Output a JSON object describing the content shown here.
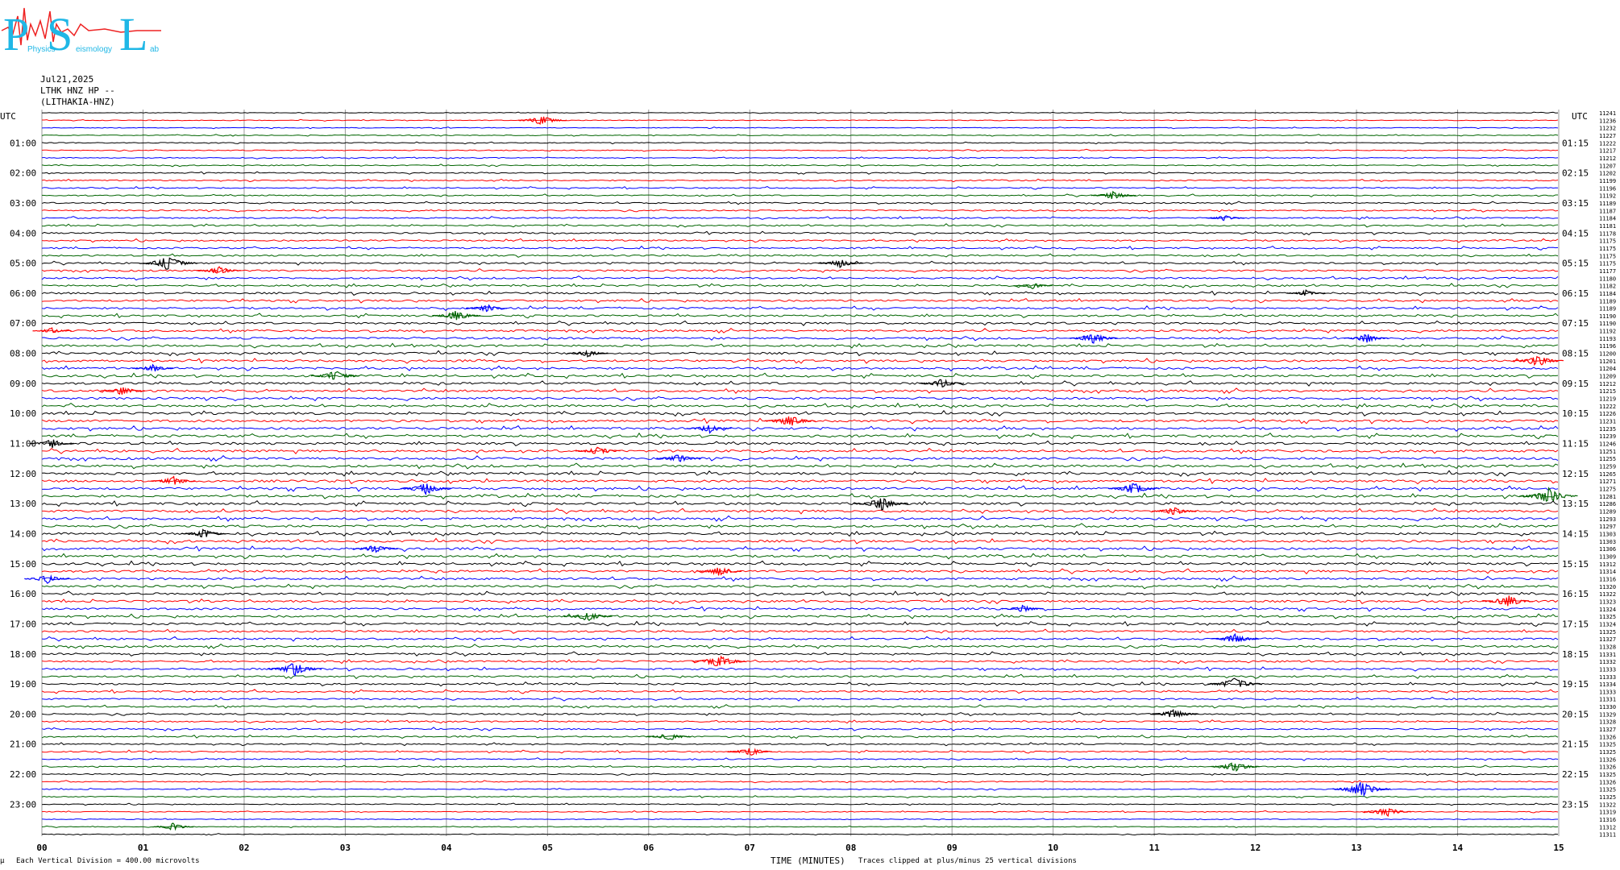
{
  "logo": {
    "letters": [
      "P",
      "S",
      "L"
    ],
    "words": [
      "Physics",
      "eismology",
      "ab"
    ],
    "colors": {
      "letters": "#1fb7e6",
      "wave": "#ee2222"
    }
  },
  "header": {
    "date": "Jul21,2025",
    "station": "LTHK HNZ HP --",
    "channel": "(LITHAKIA-HNZ)"
  },
  "chart_data": {
    "type": "line",
    "axes": {
      "left_title": "UTC",
      "right_title": "UTC",
      "x_label": "TIME (MINUTES)"
    },
    "x_ticks": [
      "00",
      "01",
      "02",
      "03",
      "04",
      "05",
      "06",
      "07",
      "08",
      "09",
      "10",
      "11",
      "12",
      "13",
      "14",
      "15"
    ],
    "xlim": [
      0,
      15
    ],
    "trace_minutes": 15,
    "trace_colors": [
      "#000000",
      "#ff0000",
      "#0000ff",
      "#006400"
    ],
    "left_labels": [
      "01:00",
      "02:00",
      "03:00",
      "04:00",
      "05:00",
      "06:00",
      "07:00",
      "08:00",
      "09:00",
      "10:00",
      "11:00",
      "12:00",
      "13:00",
      "14:00",
      "15:00",
      "16:00",
      "17:00",
      "18:00",
      "19:00",
      "20:00",
      "21:00",
      "22:00",
      "23:00"
    ],
    "right_labels": [
      "01:15",
      "02:15",
      "03:15",
      "04:15",
      "05:15",
      "06:15",
      "07:15",
      "08:15",
      "09:15",
      "10:15",
      "11:15",
      "12:15",
      "13:15",
      "14:15",
      "15:15",
      "16:15",
      "17:15",
      "18:15",
      "19:15",
      "20:15",
      "21:15",
      "22:15",
      "23:15"
    ],
    "right_values": [
      "11241",
      "11236",
      "11232",
      "11227",
      "11222",
      "11217",
      "11212",
      "11207",
      "11202",
      "11199",
      "11196",
      "11192",
      "11189",
      "11187",
      "11184",
      "11181",
      "11178",
      "11175",
      "11175",
      "11175",
      "11175",
      "11177",
      "11180",
      "11182",
      "11184",
      "11189",
      "11189",
      "11190",
      "11190",
      "11192",
      "11193",
      "11196",
      "11200",
      "11201",
      "11204",
      "11209",
      "11212",
      "11215",
      "11219",
      "11222",
      "11226",
      "11231",
      "11235",
      "11239",
      "11246",
      "11251",
      "11255",
      "11259",
      "11265",
      "11271",
      "11275",
      "11281",
      "11286",
      "11289",
      "11293",
      "11297",
      "11303",
      "11303",
      "11306",
      "11309",
      "11312",
      "11314",
      "11316",
      "11320",
      "11322",
      "11323",
      "11324",
      "11325",
      "11324",
      "11325",
      "11327",
      "11328",
      "11331",
      "11332",
      "11333",
      "11333",
      "11334",
      "11333",
      "11331",
      "11330",
      "11329",
      "11328",
      "11327",
      "11326",
      "11325",
      "11325",
      "11326",
      "11326",
      "11325",
      "11326",
      "11325",
      "11325",
      "11322",
      "11319",
      "11316",
      "11312",
      "11311"
    ],
    "events": [
      {
        "row": 1,
        "minute": 4.95,
        "amp": 7
      },
      {
        "row": 11,
        "minute": 10.6,
        "amp": 6
      },
      {
        "row": 14,
        "minute": 11.7,
        "amp": 4
      },
      {
        "row": 20,
        "minute": 1.25,
        "amp": 10
      },
      {
        "row": 20,
        "minute": 7.9,
        "amp": 6
      },
      {
        "row": 21,
        "minute": 1.75,
        "amp": 6
      },
      {
        "row": 23,
        "minute": 9.8,
        "amp": 4
      },
      {
        "row": 24,
        "minute": 12.5,
        "amp": 4
      },
      {
        "row": 26,
        "minute": 4.4,
        "amp": 5
      },
      {
        "row": 27,
        "minute": 4.1,
        "amp": 7
      },
      {
        "row": 29,
        "minute": 0.1,
        "amp": 4
      },
      {
        "row": 30,
        "minute": 10.4,
        "amp": 7
      },
      {
        "row": 30,
        "minute": 13.1,
        "amp": 6
      },
      {
        "row": 32,
        "minute": 5.4,
        "amp": 5
      },
      {
        "row": 33,
        "minute": 14.8,
        "amp": 8
      },
      {
        "row": 34,
        "minute": 1.1,
        "amp": 5
      },
      {
        "row": 35,
        "minute": 2.9,
        "amp": 7
      },
      {
        "row": 36,
        "minute": 8.9,
        "amp": 6
      },
      {
        "row": 37,
        "minute": 0.8,
        "amp": 6
      },
      {
        "row": 41,
        "minute": 7.4,
        "amp": 8
      },
      {
        "row": 42,
        "minute": 6.6,
        "amp": 6
      },
      {
        "row": 44,
        "minute": 0.1,
        "amp": 6
      },
      {
        "row": 45,
        "minute": 5.5,
        "amp": 6
      },
      {
        "row": 46,
        "minute": 6.3,
        "amp": 6
      },
      {
        "row": 49,
        "minute": 1.3,
        "amp": 6
      },
      {
        "row": 50,
        "minute": 3.8,
        "amp": 8
      },
      {
        "row": 50,
        "minute": 10.8,
        "amp": 8
      },
      {
        "row": 51,
        "minute": 14.9,
        "amp": 10
      },
      {
        "row": 52,
        "minute": 8.3,
        "amp": 9
      },
      {
        "row": 53,
        "minute": 11.2,
        "amp": 6
      },
      {
        "row": 56,
        "minute": 1.6,
        "amp": 6
      },
      {
        "row": 58,
        "minute": 3.3,
        "amp": 6
      },
      {
        "row": 61,
        "minute": 6.7,
        "amp": 6
      },
      {
        "row": 62,
        "minute": 0.05,
        "amp": 6
      },
      {
        "row": 65,
        "minute": 14.5,
        "amp": 8
      },
      {
        "row": 66,
        "minute": 9.7,
        "amp": 5
      },
      {
        "row": 67,
        "minute": 5.4,
        "amp": 7
      },
      {
        "row": 70,
        "minute": 11.8,
        "amp": 7
      },
      {
        "row": 73,
        "minute": 6.7,
        "amp": 9
      },
      {
        "row": 74,
        "minute": 2.5,
        "amp": 9
      },
      {
        "row": 76,
        "minute": 11.8,
        "amp": 9
      },
      {
        "row": 80,
        "minute": 11.2,
        "amp": 7
      },
      {
        "row": 83,
        "minute": 6.2,
        "amp": 6
      },
      {
        "row": 85,
        "minute": 7.0,
        "amp": 6
      },
      {
        "row": 87,
        "minute": 11.8,
        "amp": 7
      },
      {
        "row": 90,
        "minute": 13.05,
        "amp": 10
      },
      {
        "row": 93,
        "minute": 13.3,
        "amp": 7
      },
      {
        "row": 95,
        "minute": 1.3,
        "amp": 5
      }
    ]
  },
  "footer": {
    "left_mark": "µ",
    "division_text": "Each Vertical Division =  400.00 microvolts",
    "clip_text": "Traces clipped at plus/minus 25 vertical divisions"
  }
}
